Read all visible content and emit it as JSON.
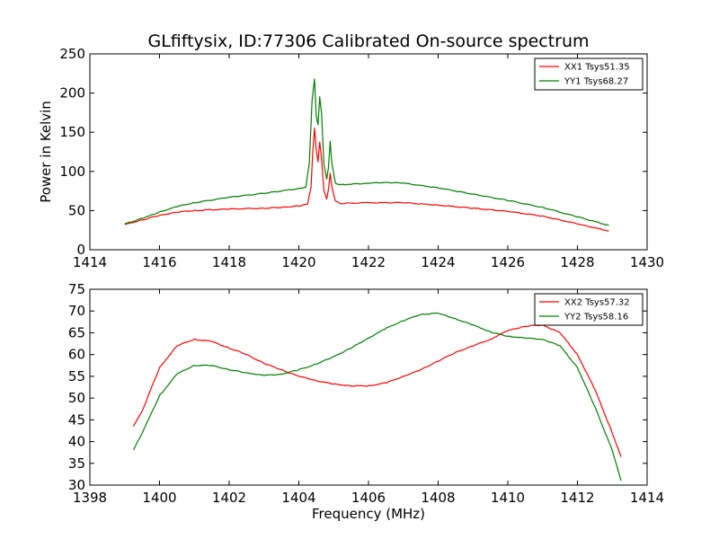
{
  "chart_data": [
    {
      "type": "line",
      "title": "GLfiftysix, ID:77306 Calibrated On-source spectrum",
      "xlabel": "",
      "ylabel": "Power in Kelvin",
      "xlim": [
        1414,
        1430
      ],
      "ylim": [
        0,
        250
      ],
      "xticks": [
        1414,
        1416,
        1418,
        1420,
        1422,
        1424,
        1426,
        1428,
        1430
      ],
      "yticks": [
        0,
        50,
        100,
        150,
        200,
        250
      ],
      "legend_position": "top-right",
      "series": [
        {
          "name": "XX1 Tsys51.35",
          "color": "#ff0000",
          "points": [
            [
              1415.0,
              32
            ],
            [
              1415.5,
              38
            ],
            [
              1416.0,
              44
            ],
            [
              1416.5,
              48
            ],
            [
              1417.0,
              50
            ],
            [
              1418.0,
              52
            ],
            [
              1419.0,
              53
            ],
            [
              1419.5,
              54
            ],
            [
              1420.0,
              56
            ],
            [
              1420.25,
              58
            ],
            [
              1420.35,
              80
            ],
            [
              1420.4,
              125
            ],
            [
              1420.45,
              155
            ],
            [
              1420.5,
              128
            ],
            [
              1420.55,
              112
            ],
            [
              1420.6,
              138
            ],
            [
              1420.65,
              118
            ],
            [
              1420.72,
              75
            ],
            [
              1420.8,
              65
            ],
            [
              1420.86,
              80
            ],
            [
              1420.9,
              98
            ],
            [
              1420.95,
              80
            ],
            [
              1421.05,
              62
            ],
            [
              1421.2,
              59
            ],
            [
              1422.0,
              60
            ],
            [
              1423.0,
              60
            ],
            [
              1424.0,
              57
            ],
            [
              1425.0,
              53
            ],
            [
              1426.0,
              49
            ],
            [
              1427.0,
              43
            ],
            [
              1428.0,
              33
            ],
            [
              1428.9,
              24
            ]
          ]
        },
        {
          "name": "YY1 Tsys68.27",
          "color": "#008000",
          "points": [
            [
              1415.0,
              33
            ],
            [
              1415.5,
              40
            ],
            [
              1416.0,
              48
            ],
            [
              1416.5,
              55
            ],
            [
              1417.0,
              60
            ],
            [
              1418.0,
              67
            ],
            [
              1419.0,
              72
            ],
            [
              1420.0,
              78
            ],
            [
              1420.2,
              80
            ],
            [
              1420.3,
              110
            ],
            [
              1420.38,
              190
            ],
            [
              1420.45,
              218
            ],
            [
              1420.5,
              170
            ],
            [
              1420.55,
              160
            ],
            [
              1420.6,
              195
            ],
            [
              1420.65,
              175
            ],
            [
              1420.72,
              110
            ],
            [
              1420.8,
              90
            ],
            [
              1420.85,
              105
            ],
            [
              1420.9,
              138
            ],
            [
              1420.95,
              110
            ],
            [
              1421.05,
              85
            ],
            [
              1421.2,
              83
            ],
            [
              1422.0,
              85
            ],
            [
              1422.5,
              86
            ],
            [
              1423.0,
              85
            ],
            [
              1424.0,
              79
            ],
            [
              1425.0,
              71
            ],
            [
              1426.0,
              63
            ],
            [
              1427.0,
              54
            ],
            [
              1428.0,
              42
            ],
            [
              1428.9,
              31
            ]
          ]
        }
      ]
    },
    {
      "type": "line",
      "title": "",
      "xlabel": "Frequency (MHz)",
      "ylabel": "",
      "xlim": [
        1398,
        1414
      ],
      "ylim": [
        30,
        75
      ],
      "xticks": [
        1398,
        1400,
        1402,
        1404,
        1406,
        1408,
        1410,
        1412,
        1414
      ],
      "yticks": [
        30,
        35,
        40,
        45,
        50,
        55,
        60,
        65,
        70,
        75
      ],
      "legend_position": "top-right",
      "series": [
        {
          "name": "XX2 Tsys57.32",
          "color": "#ff0000",
          "points": [
            [
              1399.25,
              43.5
            ],
            [
              1399.5,
              47
            ],
            [
              1400.0,
              57
            ],
            [
              1400.5,
              62
            ],
            [
              1401.0,
              63.5
            ],
            [
              1401.5,
              63
            ],
            [
              1402.0,
              61.5
            ],
            [
              1402.5,
              60
            ],
            [
              1403.0,
              58
            ],
            [
              1403.5,
              56.5
            ],
            [
              1404.0,
              55
            ],
            [
              1404.5,
              54
            ],
            [
              1405.0,
              53.2
            ],
            [
              1405.5,
              52.8
            ],
            [
              1406.0,
              52.8
            ],
            [
              1406.5,
              53.5
            ],
            [
              1407.0,
              55
            ],
            [
              1407.5,
              56.5
            ],
            [
              1408.0,
              58.5
            ],
            [
              1408.5,
              60.5
            ],
            [
              1409.0,
              62
            ],
            [
              1409.5,
              63.5
            ],
            [
              1410.0,
              65.5
            ],
            [
              1410.5,
              66.5
            ],
            [
              1411.0,
              66.8
            ],
            [
              1411.5,
              65
            ],
            [
              1412.0,
              60
            ],
            [
              1412.5,
              52
            ],
            [
              1413.0,
              42
            ],
            [
              1413.25,
              36.5
            ]
          ]
        },
        {
          "name": "YY2 Tsys58.16",
          "color": "#008000",
          "points": [
            [
              1399.25,
              38
            ],
            [
              1399.5,
              42
            ],
            [
              1400.0,
              50.5
            ],
            [
              1400.5,
              55.5
            ],
            [
              1401.0,
              57.5
            ],
            [
              1401.5,
              57.5
            ],
            [
              1402.0,
              56.5
            ],
            [
              1402.5,
              55.8
            ],
            [
              1403.0,
              55.2
            ],
            [
              1403.5,
              55.5
            ],
            [
              1404.0,
              56.5
            ],
            [
              1404.5,
              57.8
            ],
            [
              1405.0,
              59.5
            ],
            [
              1405.5,
              61.5
            ],
            [
              1406.0,
              63.8
            ],
            [
              1406.5,
              66
            ],
            [
              1407.0,
              67.8
            ],
            [
              1407.5,
              69.2
            ],
            [
              1408.0,
              69.5
            ],
            [
              1408.5,
              68.2
            ],
            [
              1409.0,
              66.8
            ],
            [
              1409.5,
              65.2
            ],
            [
              1410.0,
              64.2
            ],
            [
              1410.5,
              63.8
            ],
            [
              1411.0,
              63.5
            ],
            [
              1411.5,
              62
            ],
            [
              1412.0,
              57
            ],
            [
              1412.5,
              48
            ],
            [
              1413.0,
              38
            ],
            [
              1413.25,
              31
            ]
          ]
        }
      ]
    }
  ]
}
